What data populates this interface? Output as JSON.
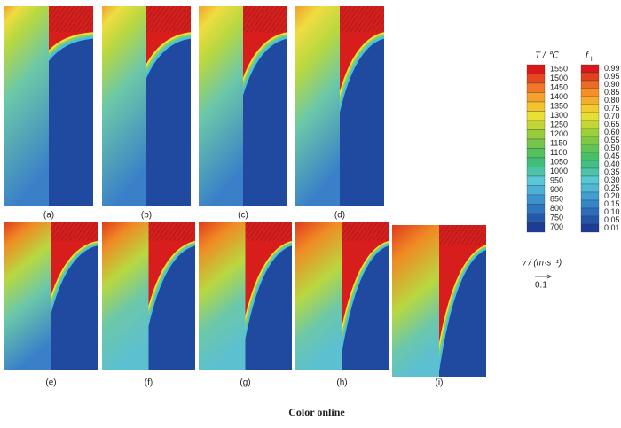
{
  "panels": [
    "(a)",
    "(b)",
    "(c)",
    "(d)",
    "(e)",
    "(f)",
    "(g)",
    "(h)",
    "(i)"
  ],
  "temperature_legend": {
    "title": "T / ℃",
    "labels": [
      "1550",
      "1500",
      "1450",
      "1400",
      "1350",
      "1300",
      "1250",
      "1200",
      "1150",
      "1100",
      "1050",
      "1000",
      "950",
      "900",
      "850",
      "800",
      "750",
      "700"
    ]
  },
  "fraction_legend": {
    "title": "f",
    "subscript": "l",
    "labels": [
      "0.99",
      "0.95",
      "0.90",
      "0.85",
      "0.80",
      "0.75",
      "0.70",
      "0.65",
      "0.60",
      "0.55",
      "0.50",
      "0.45",
      "0.40",
      "0.35",
      "0.30",
      "0.25",
      "0.20",
      "0.15",
      "0.10",
      "0.05",
      "0.01"
    ]
  },
  "velocity_legend": {
    "title": "v / (m·s⁻¹)",
    "scale": "0.1"
  },
  "caption": "Color online"
}
